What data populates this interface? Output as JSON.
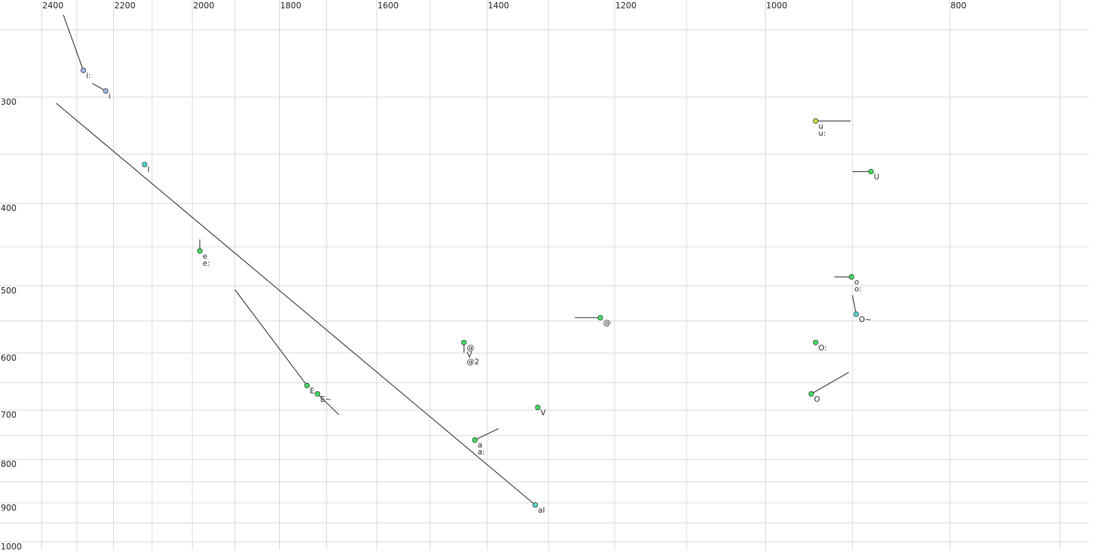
{
  "chart_data": {
    "type": "scatter",
    "xscale": "log",
    "yscale": "log",
    "xlim": [
      2400,
      700
    ],
    "ylim": [
      250,
      1000
    ],
    "xticks": [
      2400,
      2200,
      2000,
      1800,
      1600,
      1400,
      1200,
      1000,
      800
    ],
    "xgrid": [
      2300,
      2100,
      1900,
      1700,
      1500,
      1300,
      1100,
      900,
      700
    ],
    "yticks": [
      300,
      400,
      500,
      600,
      700,
      800,
      900,
      1000
    ],
    "ygrid": [
      250,
      350,
      450,
      550,
      650,
      750,
      850,
      950
    ],
    "points": [
      {
        "labels": [
          "i:"
        ],
        "f2": 2282,
        "f1": 279,
        "f2_end": 2338,
        "f1_end": 240,
        "color": "#9bb5ea"
      },
      {
        "labels": [
          "i"
        ],
        "f2": 2221,
        "f1": 295,
        "f2_end": 2257,
        "f1_end": 289,
        "color": "#9bb5ea"
      },
      {
        "labels": [
          "I"
        ],
        "f2": 2119,
        "f1": 360,
        "color": "#4fd8d0"
      },
      {
        "labels": [
          "e",
          "e:"
        ],
        "f2": 1982,
        "f1": 455,
        "f2_end": 1982,
        "f1_end": 441,
        "color": "#40e060"
      },
      {
        "labels": [
          "E"
        ],
        "f2": 1741,
        "f1": 655,
        "f2_end": 1900,
        "f1_end": 505,
        "color": "#40e060"
      },
      {
        "labels": [
          "E~"
        ],
        "f2": 1719,
        "f1": 670,
        "f2_end": 1675,
        "f1_end": 709,
        "color": "#40e060"
      },
      {
        "labels": [
          "@",
          "V",
          "@2"
        ],
        "f2": 1440,
        "f1": 583,
        "f2_end": 1440,
        "f1_end": 599,
        "color": "#40e060"
      },
      {
        "labels": [
          "a",
          "a:"
        ],
        "f2": 1421,
        "f1": 759,
        "f2_end": 1381,
        "f1_end": 736,
        "color": "#40e060"
      },
      {
        "labels": [
          "aI"
        ],
        "f2": 1321,
        "f1": 905,
        "f2_end": 2358,
        "f1_end": 305,
        "color": "#4fd8d0"
      },
      {
        "labels": [
          "V"
        ],
        "f2": 1317,
        "f1": 695,
        "color": "#40e060"
      },
      {
        "labels": [
          "@"
        ],
        "f2": 1221,
        "f1": 545,
        "f2_end": 1259,
        "f1_end": 545,
        "color": "#40e060"
      },
      {
        "labels": [
          "u",
          "u:"
        ],
        "f2": 941,
        "f1": 320,
        "f2_end": 902,
        "f1_end": 320,
        "color": "#c8e040"
      },
      {
        "labels": [
          "U"
        ],
        "f2": 880,
        "f1": 367,
        "f2_end": 900,
        "f1_end": 367,
        "color": "#40e060"
      },
      {
        "labels": [
          "o",
          "o:"
        ],
        "f2": 901,
        "f1": 488,
        "f2_end": 920,
        "f1_end": 488,
        "color": "#40e060"
      },
      {
        "labels": [
          "O~"
        ],
        "f2": 896,
        "f1": 540,
        "f2_end": 900,
        "f1_end": 513,
        "color": "#4fd8d0"
      },
      {
        "labels": [
          "O:"
        ],
        "f2": 941,
        "f1": 583,
        "color": "#40e060"
      },
      {
        "labels": [
          "O"
        ],
        "f2": 946,
        "f1": 670,
        "f2_end": 904,
        "f1_end": 632,
        "color": "#40e060"
      }
    ]
  }
}
